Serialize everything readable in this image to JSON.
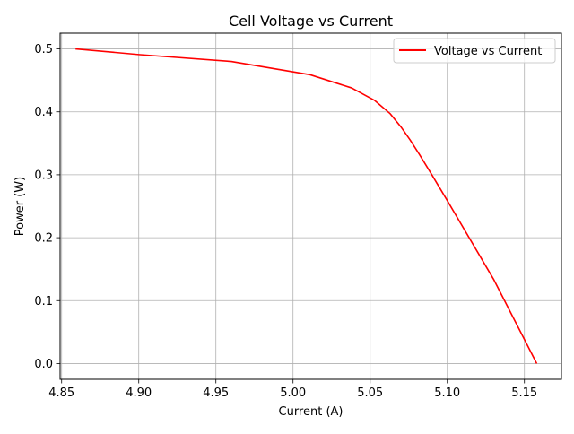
{
  "chart_data": {
    "type": "line",
    "title": "Cell Voltage vs Current",
    "xlabel": "Current (A)",
    "ylabel": "Power (W)",
    "xlim": [
      4.849,
      5.174
    ],
    "ylim": [
      -0.025,
      0.525
    ],
    "x_ticks": [
      4.85,
      4.9,
      4.95,
      5.0,
      5.05,
      5.1,
      5.15
    ],
    "x_tick_labels": [
      "4.85",
      "4.90",
      "4.95",
      "5.00",
      "5.05",
      "5.10",
      "5.15"
    ],
    "y_ticks": [
      0.0,
      0.1,
      0.2,
      0.3,
      0.4,
      0.5
    ],
    "y_tick_labels": [
      "0.0",
      "0.1",
      "0.2",
      "0.3",
      "0.4",
      "0.5"
    ],
    "grid": true,
    "legend_position": "top-right",
    "series": [
      {
        "name": "Voltage vs Current",
        "color": "#ff0000",
        "x": [
          4.859,
          4.9,
          4.96,
          5.011,
          5.038,
          5.053,
          5.063,
          5.07,
          5.076,
          5.082,
          5.09,
          5.1,
          5.13,
          5.158
        ],
        "y": [
          0.5,
          0.491,
          0.48,
          0.459,
          0.438,
          0.418,
          0.397,
          0.376,
          0.355,
          0.332,
          0.3,
          0.259,
          0.134,
          0.0
        ]
      }
    ]
  }
}
